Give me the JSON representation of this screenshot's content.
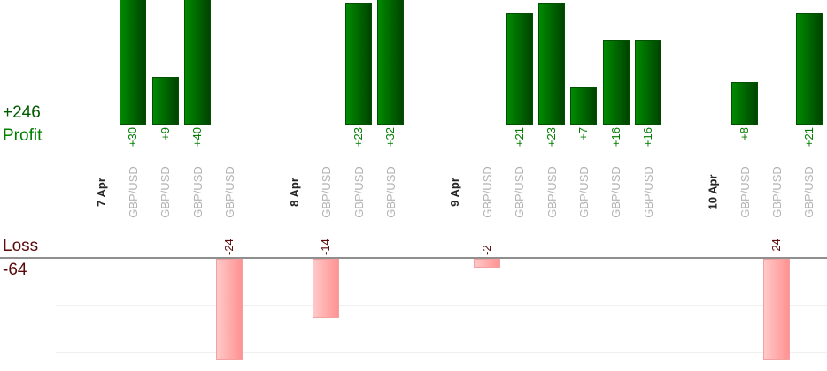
{
  "summary": {
    "profit_total": "+246",
    "profit_label": "Profit",
    "loss_label": "Loss",
    "loss_total": "-64"
  },
  "chart_data": {
    "type": "bar",
    "title": "",
    "orientation": "vertical",
    "sections": {
      "top_label": "Profit",
      "top_total": "+246",
      "bottom_label": "Loss",
      "bottom_total": "-64"
    },
    "grid": true,
    "groups": [
      {
        "date": "7 Apr",
        "trades": [
          {
            "symbol": "GBP/USD",
            "value": 30,
            "label": "+30"
          },
          {
            "symbol": "GBP/USD",
            "value": 9,
            "label": "+9"
          },
          {
            "symbol": "GBP/USD",
            "value": 40,
            "label": "+40"
          },
          {
            "symbol": "GBP/USD",
            "value": -24,
            "label": "-24"
          }
        ]
      },
      {
        "date": "8 Apr",
        "trades": [
          {
            "symbol": "GBP/USD",
            "value": -14,
            "label": "-14"
          },
          {
            "symbol": "GBP/USD",
            "value": 23,
            "label": "+23"
          },
          {
            "symbol": "GBP/USD",
            "value": 32,
            "label": "+32"
          }
        ]
      },
      {
        "date": "9 Apr",
        "trades": [
          {
            "symbol": "GBP/USD",
            "value": -2,
            "label": "-2"
          },
          {
            "symbol": "GBP/USD",
            "value": 21,
            "label": "+21"
          },
          {
            "symbol": "GBP/USD",
            "value": 23,
            "label": "+23"
          },
          {
            "symbol": "GBP/USD",
            "value": 7,
            "label": "+7"
          },
          {
            "symbol": "GBP/USD",
            "value": 16,
            "label": "+16"
          },
          {
            "symbol": "GBP/USD",
            "value": 16,
            "label": "+16"
          }
        ]
      },
      {
        "date": "10 Apr",
        "trades": [
          {
            "symbol": "GBP/USD",
            "value": 8,
            "label": "+8"
          },
          {
            "symbol": "GBP/USD",
            "value": -24,
            "label": "-24"
          },
          {
            "symbol": "GBP/USD",
            "value": 21,
            "label": "+21"
          }
        ]
      }
    ],
    "totals": {
      "profit": 246,
      "loss": -64
    },
    "colors": {
      "profit_bar_light": "#008a00",
      "profit_bar_dark": "#004400",
      "profit_bar_border": "#025002",
      "loss_bar_light": "#ffc9c9",
      "loss_bar_dark": "#ff9292",
      "loss_bar_border": "#f5a0a0",
      "profit_text": "#007b00",
      "profit_text_bright": "#008000",
      "profit_total_text": "#005a00",
      "loss_text": "#5a0a0a",
      "date_text": "#262626",
      "symbol_text": "#b3b3b3",
      "axis_line": "#999999",
      "loss_axis_line": "#8f8f8f",
      "gridline": "#f0f0f0"
    }
  }
}
